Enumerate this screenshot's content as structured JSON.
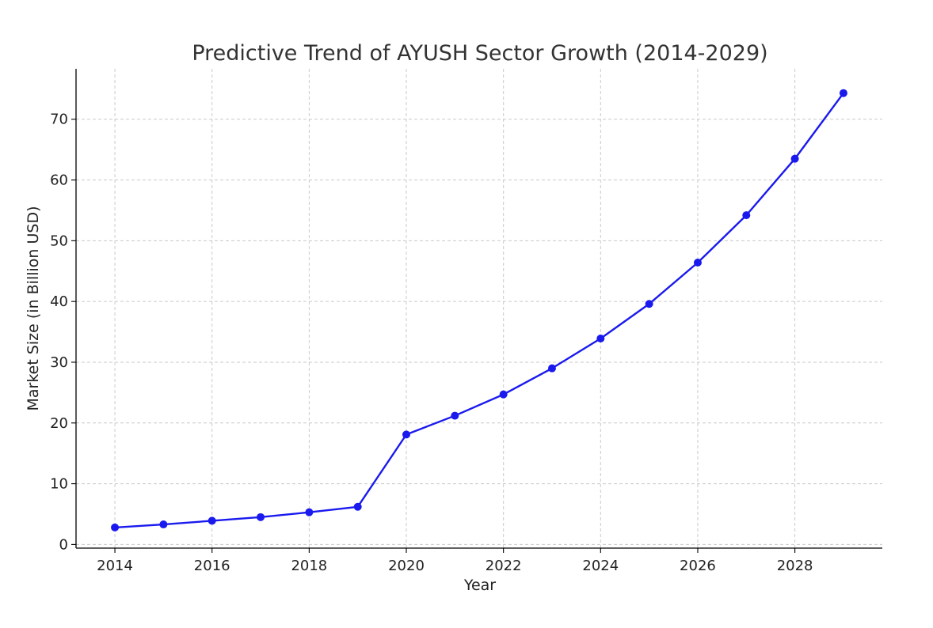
{
  "chart_data": {
    "type": "line",
    "title": "Predictive Trend of AYUSH Sector Growth (2014-2029)",
    "xlabel": "Year",
    "ylabel": "Market Size (in Billion USD)",
    "x": [
      2014,
      2015,
      2016,
      2017,
      2018,
      2019,
      2020,
      2021,
      2022,
      2023,
      2024,
      2025,
      2026,
      2027,
      2028,
      2029
    ],
    "series": [
      {
        "values": [
          2.8,
          3.3,
          3.9,
          4.5,
          5.3,
          6.2,
          18.1,
          21.2,
          24.7,
          29.0,
          33.9,
          39.6,
          46.4,
          54.2,
          63.5,
          74.3
        ]
      }
    ],
    "xlim": [
      2013.2,
      2029.8
    ],
    "ylim": [
      -0.6,
      78.3
    ],
    "xticks": [
      2014,
      2016,
      2018,
      2020,
      2022,
      2024,
      2026,
      2028
    ],
    "yticks": [
      0,
      10,
      20,
      30,
      40,
      50,
      60,
      70
    ],
    "grid": true,
    "line_color": "#1a1aee",
    "marker": "circle"
  }
}
